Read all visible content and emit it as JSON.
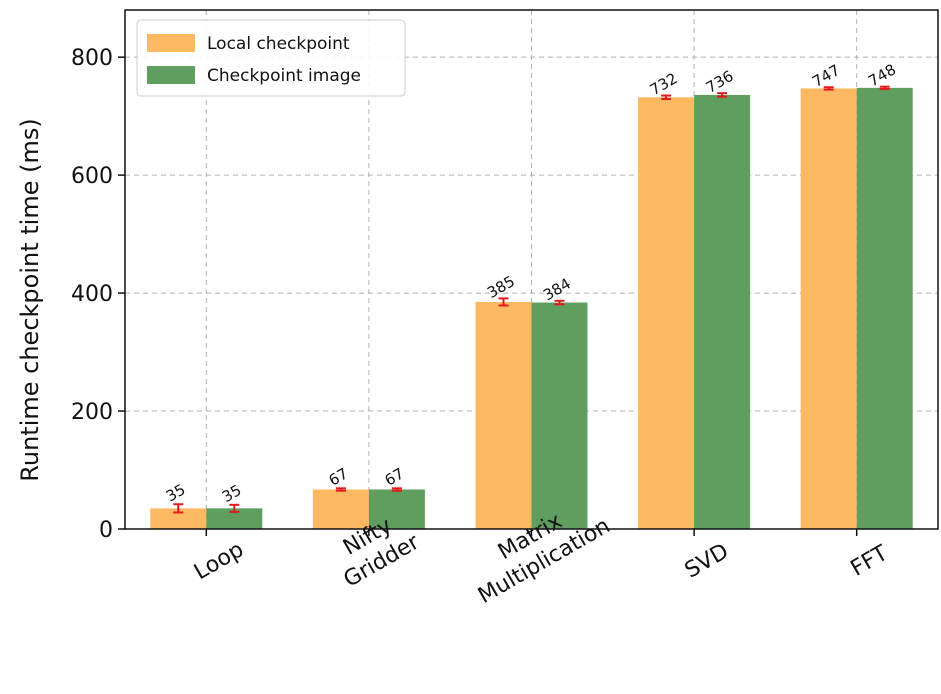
{
  "chart_data": {
    "type": "bar",
    "title": "",
    "xlabel": "",
    "ylabel": "Runtime checkpoint time (ms)",
    "ylim": [
      0,
      880
    ],
    "yticks": [
      0,
      200,
      400,
      600,
      800
    ],
    "grid": true,
    "legend_position": "top-left",
    "categories": [
      "Loop",
      "Nifty\nGridder",
      "Matrix\nMultiplication",
      "SVD",
      "FFT"
    ],
    "series": [
      {
        "name": "Local checkpoint",
        "color": "#FDB862",
        "values": [
          35,
          67,
          385,
          732,
          747
        ],
        "errors": [
          7,
          2,
          6,
          3,
          2
        ]
      },
      {
        "name": "Checkpoint image",
        "color": "#5F9E5F",
        "values": [
          35,
          67,
          384,
          736,
          748
        ],
        "errors": [
          6,
          2,
          3,
          3,
          2
        ]
      }
    ],
    "error_bar_color": "#E31A1C"
  }
}
